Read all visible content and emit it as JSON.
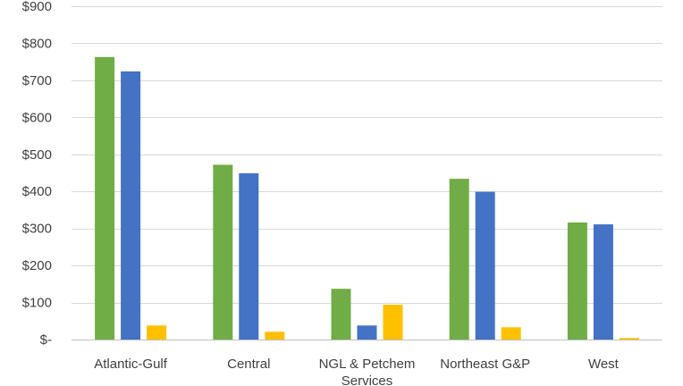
{
  "chart_data": {
    "type": "bar",
    "categories": [
      "Atlantic-Gulf",
      "Central",
      "NGL & Petchem Services",
      "Northeast G&P",
      "West"
    ],
    "category_label_lines": [
      [
        "Atlantic-Gulf"
      ],
      [
        "Central"
      ],
      [
        "NGL & Petchem",
        "Services"
      ],
      [
        "Northeast G&P"
      ],
      [
        "West"
      ]
    ],
    "series": [
      {
        "color": "#70ad47",
        "values": [
          763,
          472,
          137,
          434,
          316
        ]
      },
      {
        "color": "#4472c4",
        "values": [
          724,
          449,
          38,
          399,
          311
        ]
      },
      {
        "color": "#ffc000",
        "values": [
          38,
          21,
          94,
          33,
          4
        ]
      }
    ],
    "ylim": [
      0,
      900
    ],
    "yticks": [
      0,
      100,
      200,
      300,
      400,
      500,
      600,
      700,
      800,
      900
    ],
    "ytick_labels": [
      "$-",
      "$100",
      "$200",
      "$300",
      "$400",
      "$500",
      "$600",
      "$700",
      "$800",
      "$900"
    ],
    "grid": true,
    "legend": "none"
  }
}
